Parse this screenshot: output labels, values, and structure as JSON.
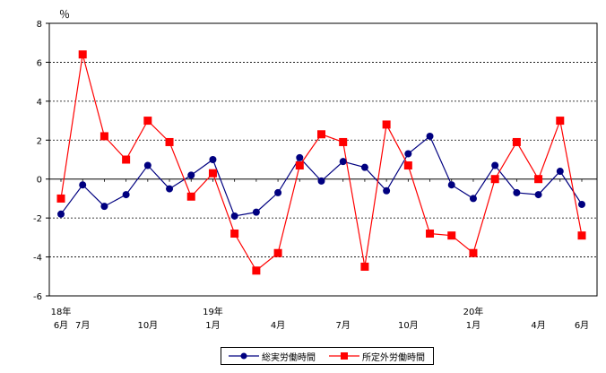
{
  "chart_data": {
    "type": "line",
    "unit_label": "％",
    "ylim": [
      -6,
      8
    ],
    "yticks": [
      -6,
      -4,
      -2,
      0,
      2,
      4,
      6,
      8
    ],
    "grid": "horizontal dashed",
    "legend_position": "bottom-center",
    "x_tick_labels": [
      {
        "index": 0,
        "lines": [
          "18年",
          "6月"
        ]
      },
      {
        "index": 1,
        "lines": [
          "",
          "7月"
        ]
      },
      {
        "index": 4,
        "lines": [
          "",
          "10月"
        ]
      },
      {
        "index": 7,
        "lines": [
          "19年",
          "1月"
        ]
      },
      {
        "index": 10,
        "lines": [
          "",
          "4月"
        ]
      },
      {
        "index": 13,
        "lines": [
          "",
          "7月"
        ]
      },
      {
        "index": 16,
        "lines": [
          "",
          "10月"
        ]
      },
      {
        "index": 19,
        "lines": [
          "20年",
          "1月"
        ]
      },
      {
        "index": 22,
        "lines": [
          "",
          "4月"
        ]
      },
      {
        "index": 24,
        "lines": [
          "",
          "6月"
        ]
      }
    ],
    "series": [
      {
        "name": "総実労働時間",
        "color": "#000080",
        "marker": "circle",
        "values": [
          -1.8,
          -0.3,
          -1.4,
          -0.8,
          0.7,
          -0.5,
          0.2,
          1.0,
          -1.9,
          -1.7,
          -0.7,
          1.1,
          -0.1,
          0.9,
          0.6,
          -0.6,
          1.3,
          2.2,
          -0.3,
          -1.0,
          0.7,
          -0.7,
          -0.8,
          0.4,
          -1.3
        ]
      },
      {
        "name": "所定外労働時間",
        "color": "#ff0000",
        "marker": "square",
        "values": [
          -1.0,
          6.4,
          2.2,
          1.0,
          3.0,
          1.9,
          -0.9,
          0.3,
          -2.8,
          -4.7,
          -3.8,
          0.7,
          2.3,
          1.9,
          -4.5,
          2.8,
          0.7,
          -2.8,
          -2.9,
          -3.8,
          0.0,
          1.9,
          0.0,
          3.0,
          -2.9
        ]
      }
    ]
  }
}
